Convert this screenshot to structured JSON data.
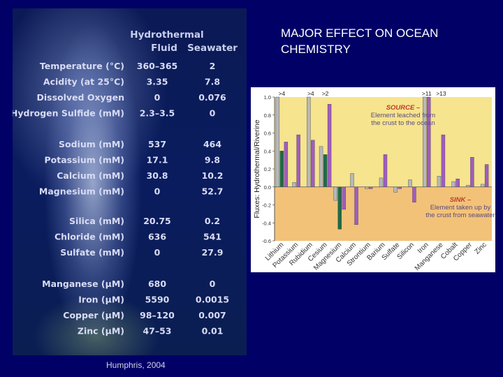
{
  "title": "MAJOR EFFECT ON OCEAN CHEMISTRY",
  "credit": "Humphris, 2004",
  "table": {
    "col_fluid": [
      "Hydrothermal",
      "Fluid"
    ],
    "col_seawater": "Seawater",
    "groups": [
      [
        {
          "label": "Temperature (°C)",
          "fluid": "360–365",
          "seawater": "2"
        },
        {
          "label": "Acidity (at 25°C)",
          "fluid": "3.35",
          "seawater": "7.8"
        },
        {
          "label": "Dissolved Oxygen",
          "fluid": "0",
          "seawater": "0.076"
        },
        {
          "label": "Hydrogen Sulfide (mM)",
          "fluid": "2.3–3.5",
          "seawater": "0"
        }
      ],
      [
        {
          "label": "Sodium (mM)",
          "fluid": "537",
          "seawater": "464"
        },
        {
          "label": "Potassium (mM)",
          "fluid": "17.1",
          "seawater": "9.8"
        },
        {
          "label": "Calcium (mM)",
          "fluid": "30.8",
          "seawater": "10.2"
        },
        {
          "label": "Magnesium (mM)",
          "fluid": "0",
          "seawater": "52.7"
        }
      ],
      [
        {
          "label": "Silica (mM)",
          "fluid": "20.75",
          "seawater": "0.2"
        },
        {
          "label": "Chloride (mM)",
          "fluid": "636",
          "seawater": "541"
        },
        {
          "label": "Sulfate (mM)",
          "fluid": "0",
          "seawater": "27.9"
        }
      ],
      [
        {
          "label": "Manganese (μM)",
          "fluid": "680",
          "seawater": "0"
        },
        {
          "label": "Iron (μM)",
          "fluid": "5590",
          "seawater": "0.0015"
        },
        {
          "label": "Copper (μM)",
          "fluid": "98–120",
          "seawater": "0.007"
        },
        {
          "label": "Zinc (μM)",
          "fluid": "47–53",
          "seawater": "0.01"
        }
      ]
    ]
  },
  "chart_data": {
    "type": "bar",
    "ylabel": "Fluxes: Hydrothermal/Riverine",
    "ylim": [
      -0.6,
      1.0
    ],
    "yticks": [
      "1.0",
      "0.8",
      "0.6",
      "0.4",
      "0.2",
      "0.0",
      "-0.2",
      "-0.4",
      "-0.6"
    ],
    "grid": false,
    "categories": [
      "Lithium",
      "Potassium",
      "Rubidium",
      "Cesium",
      "Magnesium",
      "Calcium",
      "Strontium",
      "Barium",
      "Sulfate",
      "Silicon",
      "Iron",
      "Manganese",
      "Cobalt",
      "Copper",
      "Zinc"
    ],
    "series": [
      {
        "values": [
          1.0,
          0.05,
          1.0,
          0.45,
          -0.15,
          0.15,
          -0.02,
          0.1,
          -0.06,
          0.08,
          1.0,
          0.12,
          0.06,
          0.02,
          0.03
        ]
      },
      {
        "values": [
          0.5,
          0.58,
          0.52,
          0.92,
          -0.25,
          -0.42,
          -0.02,
          0.36,
          -0.02,
          -0.17,
          1.0,
          0.58,
          0.09,
          0.33,
          0.25
        ]
      },
      {
        "values": [
          0.4,
          null,
          null,
          0.36,
          -0.47,
          null,
          null,
          null,
          null,
          null,
          null,
          null,
          null,
          null,
          null
        ]
      }
    ],
    "overflow_labels": [
      {
        "category": "Lithium",
        "text": ">4"
      },
      {
        "category": "Rubidium",
        "text": ">4"
      },
      {
        "category": "Cesium",
        "text": ">2"
      },
      {
        "category": "Iron",
        "text": ">11"
      },
      {
        "category": "Manganese",
        "text": ">13"
      }
    ],
    "annotations": {
      "source": {
        "head": "SOURCE –",
        "body": "Element leached from the crust to the ocean"
      },
      "sink": {
        "head": "SINK –",
        "body": "Element taken up by the crust from seawater"
      }
    },
    "colors": {
      "source_bg": "#f6e48e",
      "sink_bg": "#f2c279",
      "gray": "#b8b8b8",
      "green": "#1f6b45",
      "purple": "#a15cc0"
    }
  }
}
